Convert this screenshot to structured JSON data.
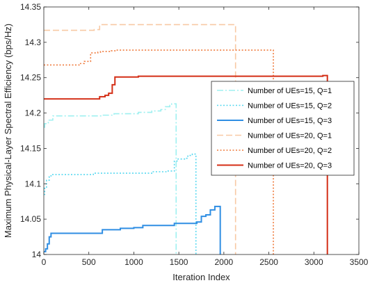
{
  "chart_data": {
    "type": "line",
    "title": "",
    "xlabel": "Iteration Index",
    "ylabel": "Maximum Physical-Layer Spectral Efficiency (bps/Hz)",
    "xlim": [
      0,
      3500
    ],
    "ylim": [
      14,
      14.35
    ],
    "xticks": [
      0,
      500,
      1000,
      1500,
      2000,
      2500,
      3000,
      3500
    ],
    "xtick_labels": [
      "0",
      "500",
      "1000",
      "1500",
      "2000",
      "2500",
      "3000",
      "3500"
    ],
    "yticks": [
      14,
      14.05,
      14.1,
      14.15,
      14.2,
      14.25,
      14.3,
      14.35
    ],
    "ytick_labels": [
      "14",
      "14.05",
      "14.1",
      "14.15",
      "14.2",
      "14.25",
      "14.3",
      "14.35"
    ],
    "grid": false,
    "legend_position": "right",
    "series": [
      {
        "name": "Number of UEs=15, Q=1",
        "color": "#9ef0f0",
        "style": "dashdot",
        "end_drop": true,
        "x": [
          0,
          10,
          50,
          100,
          600,
          650,
          780,
          1050,
          1200,
          1300,
          1350,
          1400,
          1420,
          1470
        ],
        "y": [
          14.18,
          14.185,
          14.19,
          14.196,
          14.196,
          14.197,
          14.199,
          14.201,
          14.203,
          14.205,
          14.209,
          14.211,
          14.213,
          14.213
        ]
      },
      {
        "name": "Number of UEs=15, Q=2",
        "color": "#55d8f0",
        "style": "dotted",
        "end_drop": true,
        "x": [
          0,
          10,
          30,
          60,
          80,
          500,
          550,
          1150,
          1200,
          1380,
          1450,
          1480,
          1580,
          1600,
          1650,
          1690
        ],
        "y": [
          14.085,
          14.095,
          14.105,
          14.11,
          14.113,
          14.113,
          14.115,
          14.115,
          14.117,
          14.118,
          14.132,
          14.135,
          14.136,
          14.14,
          14.142,
          14.142
        ]
      },
      {
        "name": "Number of UEs=15, Q=3",
        "color": "#2f8ee3",
        "style": "solid",
        "end_drop": true,
        "x": [
          0,
          20,
          40,
          60,
          80,
          620,
          650,
          850,
          1000,
          1100,
          1450,
          1700,
          1750,
          1800,
          1850,
          1900,
          1960
        ],
        "y": [
          14.004,
          14.008,
          14.015,
          14.025,
          14.03,
          14.03,
          14.035,
          14.037,
          14.038,
          14.041,
          14.044,
          14.046,
          14.054,
          14.056,
          14.063,
          14.068,
          14.069
        ]
      },
      {
        "name": "Number of UEs=20, Q=1",
        "color": "#f8c9a4",
        "style": "dashed",
        "end_drop": true,
        "x": [
          0,
          380,
          560,
          620,
          2130
        ],
        "y": [
          14.317,
          14.317,
          14.318,
          14.325,
          14.325
        ]
      },
      {
        "name": "Number of UEs=20, Q=2",
        "color": "#ef7a3c",
        "style": "dotted",
        "end_drop": true,
        "x": [
          0,
          300,
          400,
          450,
          520,
          600,
          630,
          750,
          800,
          950,
          1050,
          2550
        ],
        "y": [
          14.268,
          14.268,
          14.27,
          14.273,
          14.285,
          14.286,
          14.287,
          14.288,
          14.289,
          14.289,
          14.289,
          14.289
        ]
      },
      {
        "name": "Number of UEs=20, Q=3",
        "color": "#d42e16",
        "style": "solid",
        "end_drop": true,
        "x": [
          0,
          580,
          620,
          680,
          720,
          760,
          790,
          1050,
          3050,
          3100,
          3150
        ],
        "y": [
          14.22,
          14.22,
          14.223,
          14.225,
          14.228,
          14.24,
          14.251,
          14.252,
          14.252,
          14.253,
          14.254
        ]
      }
    ]
  }
}
